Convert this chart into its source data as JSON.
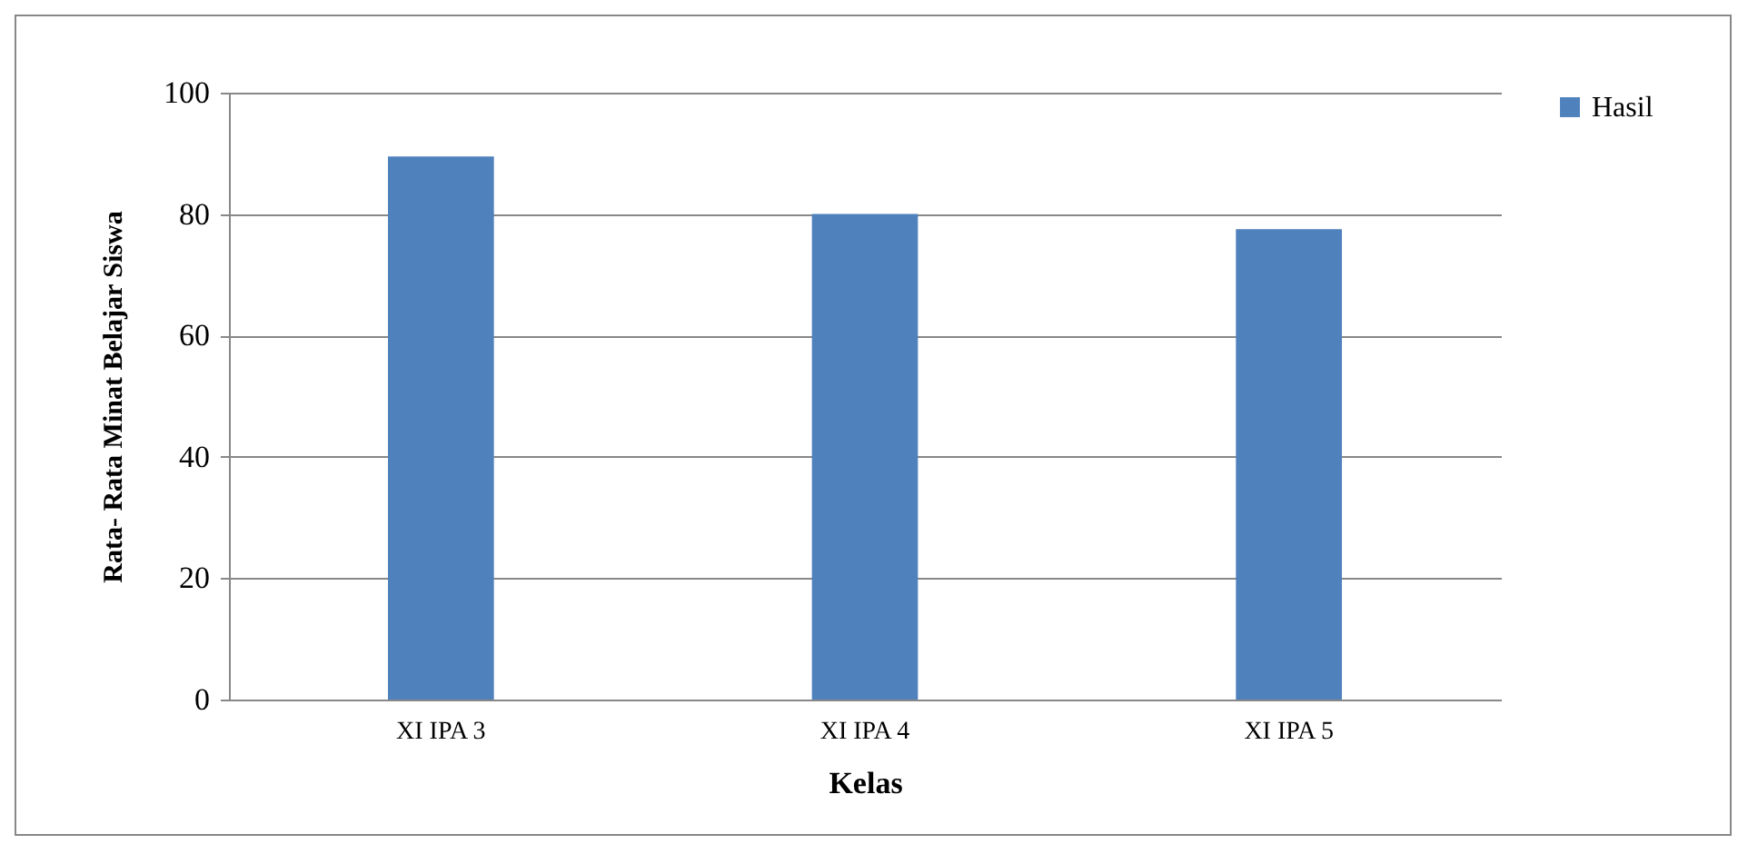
{
  "chart_data": {
    "type": "bar",
    "xlabel": "Kelas",
    "ylabel": "Rata- Rata Minat Belajar Siswa",
    "categories": [
      "XI IPA 3",
      "XI IPA  4",
      "XI IPA 5"
    ],
    "series": [
      {
        "name": "Hasil",
        "color": "#4f81bd",
        "values": [
          89.5,
          80,
          77.5
        ]
      }
    ],
    "ylim": [
      0,
      100
    ],
    "yticks": [
      0,
      20,
      40,
      60,
      80,
      100
    ],
    "grid": "y",
    "legend": "right"
  }
}
